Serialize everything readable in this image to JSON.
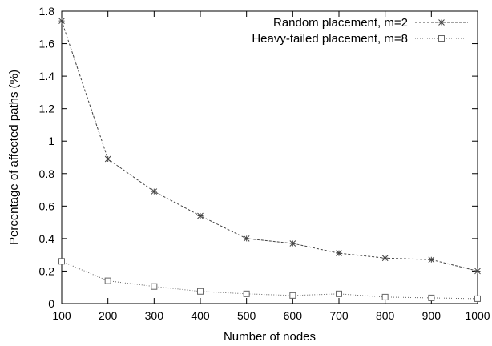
{
  "chart_data": {
    "type": "line",
    "title": "",
    "xlabel": "Number of nodes",
    "ylabel": "Percentage of affected paths (%)",
    "xlim": [
      100,
      1000
    ],
    "ylim": [
      0,
      1.8
    ],
    "xticks": [
      100,
      200,
      300,
      400,
      500,
      600,
      700,
      800,
      900,
      1000
    ],
    "yticks": [
      0,
      0.2,
      0.4,
      0.6,
      0.8,
      1,
      1.2,
      1.4,
      1.6,
      1.8
    ],
    "grid": false,
    "legend_position": "top-right",
    "x": [
      100,
      200,
      300,
      400,
      500,
      600,
      700,
      800,
      900,
      1000
    ],
    "series": [
      {
        "name": "Random placement, m=2",
        "marker": "asterisk",
        "line": "dashed",
        "values": [
          1.74,
          0.89,
          0.69,
          0.54,
          0.4,
          0.37,
          0.31,
          0.28,
          0.27,
          0.2
        ]
      },
      {
        "name": "Heavy-tailed placement, m=8",
        "marker": "square",
        "line": "dotted",
        "values": [
          0.26,
          0.14,
          0.105,
          0.075,
          0.06,
          0.05,
          0.06,
          0.04,
          0.035,
          0.03
        ]
      }
    ]
  }
}
